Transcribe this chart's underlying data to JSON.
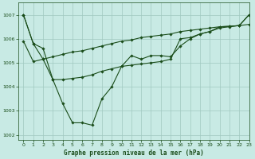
{
  "xlabel": "Graphe pression niveau de la mer (hPa)",
  "ylim": [
    1001.8,
    1007.5
  ],
  "xlim": [
    -0.5,
    23
  ],
  "yticks": [
    1002,
    1003,
    1004,
    1005,
    1006,
    1007
  ],
  "xticks": [
    0,
    1,
    2,
    3,
    4,
    5,
    6,
    7,
    8,
    9,
    10,
    11,
    12,
    13,
    14,
    15,
    16,
    17,
    18,
    19,
    20,
    21,
    22,
    23
  ],
  "bg_color": "#c8eae4",
  "line_color": "#1a4d1a",
  "grid_color": "#a0c8c0",
  "line1_y": [
    1007.0,
    1005.8,
    1005.6,
    1004.3,
    1003.3,
    1002.5,
    1002.5,
    1002.4,
    1003.5,
    1004.0,
    1004.85,
    1005.3,
    1005.15,
    1005.3,
    1005.3,
    1005.25,
    1005.7,
    1006.0,
    1006.2,
    1006.3,
    1006.45,
    1006.5,
    1006.55,
    1007.0
  ],
  "line2_y": [
    1005.9,
    1005.05,
    1005.15,
    1005.25,
    1005.35,
    1005.45,
    1005.5,
    1005.6,
    1005.7,
    1005.8,
    1005.9,
    1005.95,
    1006.05,
    1006.1,
    1006.15,
    1006.2,
    1006.3,
    1006.35,
    1006.4,
    1006.45,
    1006.5,
    1006.52,
    1006.55,
    1006.6
  ],
  "line3_y": [
    1007.0,
    1005.8,
    1005.15,
    1004.3,
    1004.3,
    1004.35,
    1004.4,
    1004.5,
    1004.65,
    1004.75,
    1004.85,
    1004.9,
    1004.95,
    1005.0,
    1005.05,
    1005.15,
    1006.0,
    1006.05,
    1006.2,
    1006.3,
    1006.5,
    1006.52,
    1006.55,
    1007.0
  ]
}
